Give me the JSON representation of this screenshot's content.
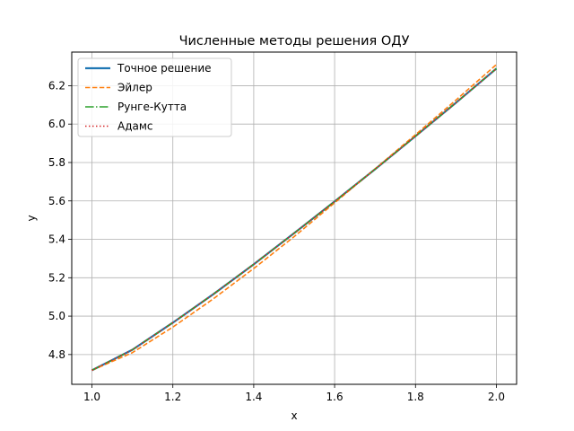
{
  "chart_data": {
    "type": "line",
    "title": "Численные методы решения ОДУ",
    "xlabel": "x",
    "ylabel": "y",
    "xlim": [
      0.95,
      2.05
    ],
    "ylim": [
      4.645,
      6.375
    ],
    "xticks": [
      "1.0",
      "1.2",
      "1.4",
      "1.6",
      "1.8",
      "2.0"
    ],
    "yticks": [
      "4.8",
      "5.0",
      "5.2",
      "5.4",
      "5.6",
      "5.8",
      "6.0",
      "6.2"
    ],
    "grid": true,
    "legend_position": "upper-left",
    "x": [
      1.0,
      1.1,
      1.2,
      1.3,
      1.4,
      1.5,
      1.6,
      1.7,
      1.8,
      1.9,
      2.0
    ],
    "series": [
      {
        "name": "Точное решение",
        "color": "#1f77b4",
        "style": "solid",
        "values": [
          4.718,
          4.825,
          4.966,
          5.114,
          5.27,
          5.432,
          5.597,
          5.765,
          5.937,
          6.111,
          6.289
        ]
      },
      {
        "name": "Эйлер",
        "color": "#ff7f0e",
        "style": "dashed",
        "values": [
          4.718,
          4.81,
          4.943,
          5.09,
          5.248,
          5.414,
          5.59,
          5.767,
          5.945,
          6.125,
          6.31
        ]
      },
      {
        "name": "Рунге-Кутта",
        "color": "#2ca02c",
        "style": "dashdot",
        "values": [
          4.718,
          4.825,
          4.966,
          5.114,
          5.27,
          5.432,
          5.597,
          5.765,
          5.937,
          6.111,
          6.289
        ]
      },
      {
        "name": "Адамс",
        "color": "#d62728",
        "style": "dotted",
        "values": [
          4.718,
          4.825,
          4.966,
          5.114,
          5.27,
          5.432,
          5.597,
          5.765,
          5.937,
          6.111,
          6.289
        ]
      }
    ]
  }
}
